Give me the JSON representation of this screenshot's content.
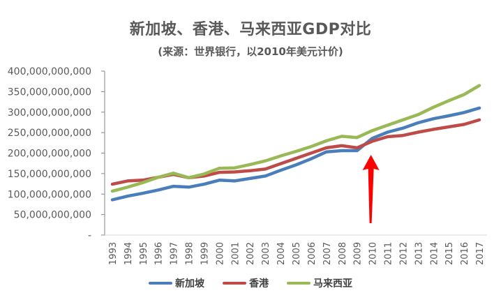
{
  "chart_data": {
    "type": "line",
    "title": "新加坡、香港、马来西亚GDP对比",
    "subtitle": "(来源：世界银行，以2010年美元计价)",
    "xlabel": "",
    "ylabel": "",
    "ylim": [
      0,
      400000000000
    ],
    "yticks": [
      0,
      50000000000,
      100000000000,
      150000000000,
      200000000000,
      250000000000,
      300000000000,
      350000000000,
      400000000000
    ],
    "ytick_labels": [
      "-",
      "50,000,000,000",
      "100,000,000,000",
      "150,000,000,000",
      "200,000,000,000",
      "250,000,000,000",
      "300,000,000,000",
      "350,000,000,000",
      "400,000,000,000"
    ],
    "grid": false,
    "legend_position": "bottom",
    "categories": [
      "1993",
      "1994",
      "1995",
      "1996",
      "1997",
      "1998",
      "1999",
      "2000",
      "2001",
      "2002",
      "2003",
      "2004",
      "2005",
      "2006",
      "2007",
      "2008",
      "2009",
      "2010",
      "2011",
      "2012",
      "2013",
      "2014",
      "2015",
      "2016",
      "2017"
    ],
    "series": [
      {
        "name": "新加坡",
        "color": "#4a7ebb",
        "values": [
          86000000000,
          95000000000,
          102000000000,
          110000000000,
          119000000000,
          117000000000,
          124000000000,
          134000000000,
          132000000000,
          138000000000,
          144000000000,
          158000000000,
          171000000000,
          186000000000,
          203000000000,
          206000000000,
          206000000000,
          236000000000,
          251000000000,
          261000000000,
          274000000000,
          284000000000,
          291000000000,
          299000000000,
          310000000000
        ]
      },
      {
        "name": "香港",
        "color": "#be4b48",
        "values": [
          124000000000,
          132000000000,
          134000000000,
          141000000000,
          148000000000,
          140000000000,
          144000000000,
          153000000000,
          154000000000,
          157000000000,
          161000000000,
          174000000000,
          187000000000,
          200000000000,
          213000000000,
          218000000000,
          213000000000,
          229000000000,
          240000000000,
          243000000000,
          251000000000,
          258000000000,
          264000000000,
          270000000000,
          281000000000
        ]
      },
      {
        "name": "马来西亚",
        "color": "#98b954",
        "values": [
          107000000000,
          117000000000,
          128000000000,
          141000000000,
          151000000000,
          140000000000,
          149000000000,
          163000000000,
          164000000000,
          172000000000,
          181000000000,
          193000000000,
          204000000000,
          216000000000,
          230000000000,
          241000000000,
          238000000000,
          255000000000,
          268000000000,
          281000000000,
          294000000000,
          312000000000,
          328000000000,
          343000000000,
          365000000000
        ]
      }
    ],
    "annotations": [
      {
        "type": "arrow",
        "color": "#ff0000",
        "points_to_category": "2010",
        "direction": "up"
      }
    ]
  }
}
